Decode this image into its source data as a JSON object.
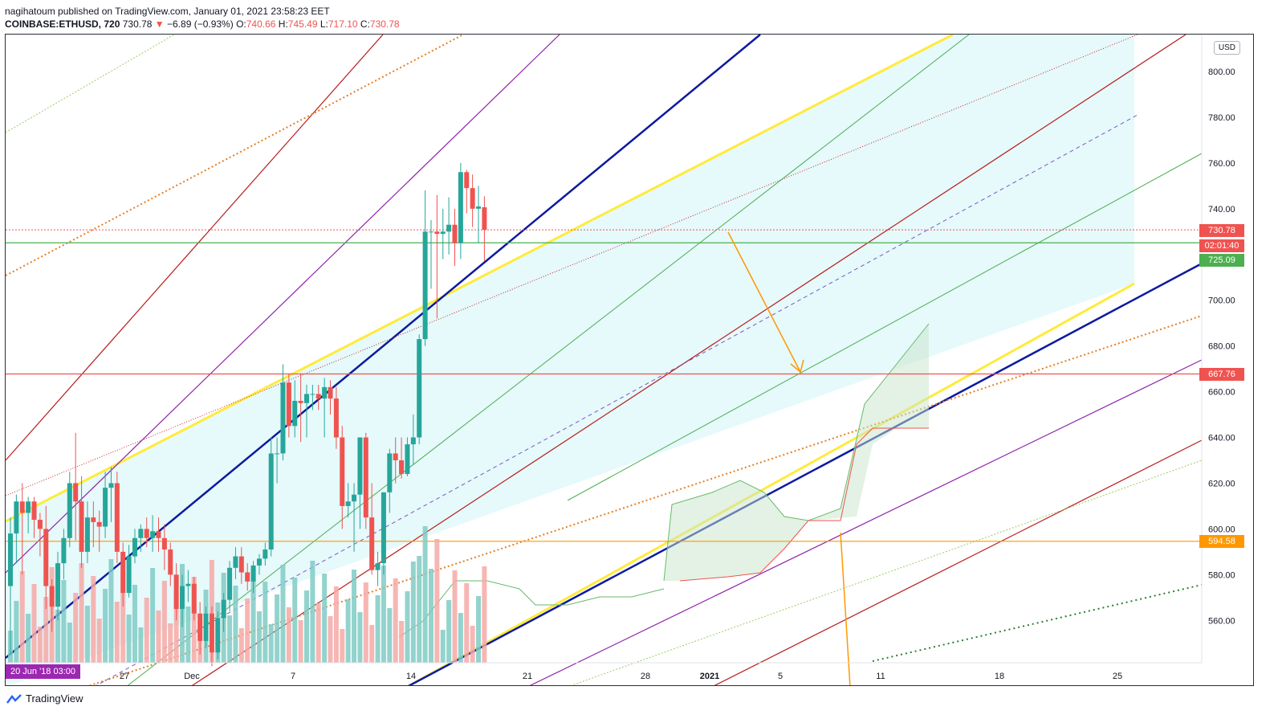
{
  "header": {
    "line1": "nagihatoum published on TradingView.com, January 01, 2021 23:58:23 EET",
    "symbol": "COINBASE:ETHUSD, 720",
    "last": "730.78",
    "arrow": "▼",
    "change": "−6.89 (−0.93%)",
    "o_label": "O:",
    "o_value": "740.66",
    "h_label": "H:",
    "h_value": "745.49",
    "l_label": "L:",
    "l_value": "717.10",
    "c_label": "C:",
    "c_value": "730.78"
  },
  "footer": {
    "brand": "TradingView"
  },
  "chart": {
    "currency": "USD",
    "date_badge": "20 Jun '18   03:00",
    "price_tags": [
      {
        "label": "730.78",
        "color": "#ef5350"
      },
      {
        "label": "02:01:40",
        "color": "#ef5350"
      },
      {
        "label": "725.09",
        "color": "#4caf50"
      },
      {
        "label": "667.76",
        "color": "#ef5350"
      },
      {
        "label": "594.58",
        "color": "#ff9800"
      }
    ]
  },
  "chart_data": {
    "type": "candlestick",
    "title": "COINBASE:ETHUSD, 720",
    "x_ticks": [
      "27",
      "Dec",
      "7",
      "14",
      "21",
      "28",
      "2021",
      "5",
      "11",
      "18",
      "25"
    ],
    "y_ticks": [
      560,
      580,
      600,
      620,
      640,
      660,
      680,
      700,
      720,
      740,
      760,
      780,
      800
    ],
    "y_tick_labels": [
      "560.00",
      "580.00",
      "600.00",
      "620.00",
      "640.00",
      "660.00",
      "680.00",
      "700.00",
      "",
      "740.00",
      "760.00",
      "780.00",
      "800.00"
    ],
    "ylim": [
      540,
      812
    ],
    "grid": false,
    "horizontal_levels": [
      {
        "value": 730.78,
        "color": "#ef5350",
        "style": "dotted"
      },
      {
        "value": 725.09,
        "color": "#4caf50",
        "style": "solid"
      },
      {
        "value": 667.76,
        "color": "#ef5350",
        "style": "solid"
      },
      {
        "value": 594.58,
        "color": "#ff9800",
        "style": "solid"
      }
    ],
    "candles": [
      {
        "o": 575,
        "h": 605,
        "l": 545,
        "c": 598
      },
      {
        "o": 598,
        "h": 615,
        "l": 585,
        "c": 612
      },
      {
        "o": 612,
        "h": 620,
        "l": 580,
        "c": 607
      },
      {
        "o": 607,
        "h": 614,
        "l": 598,
        "c": 612
      },
      {
        "o": 612,
        "h": 614,
        "l": 596,
        "c": 604
      },
      {
        "o": 604,
        "h": 607,
        "l": 588,
        "c": 600
      },
      {
        "o": 600,
        "h": 610,
        "l": 565,
        "c": 575
      },
      {
        "o": 575,
        "h": 578,
        "l": 555,
        "c": 566
      },
      {
        "o": 566,
        "h": 590,
        "l": 560,
        "c": 585
      },
      {
        "o": 585,
        "h": 600,
        "l": 578,
        "c": 596
      },
      {
        "o": 596,
        "h": 625,
        "l": 592,
        "c": 620
      },
      {
        "o": 620,
        "h": 642,
        "l": 595,
        "c": 612
      },
      {
        "o": 612,
        "h": 623,
        "l": 583,
        "c": 590
      },
      {
        "o": 590,
        "h": 612,
        "l": 585,
        "c": 605
      },
      {
        "o": 605,
        "h": 612,
        "l": 592,
        "c": 603
      },
      {
        "o": 603,
        "h": 608,
        "l": 590,
        "c": 601
      },
      {
        "o": 601,
        "h": 625,
        "l": 596,
        "c": 618
      },
      {
        "o": 618,
        "h": 627,
        "l": 603,
        "c": 620
      },
      {
        "o": 620,
        "h": 625,
        "l": 585,
        "c": 590
      },
      {
        "o": 590,
        "h": 594,
        "l": 566,
        "c": 572
      },
      {
        "o": 572,
        "h": 593,
        "l": 570,
        "c": 588
      },
      {
        "o": 588,
        "h": 600,
        "l": 585,
        "c": 596
      },
      {
        "o": 596,
        "h": 602,
        "l": 590,
        "c": 600
      },
      {
        "o": 600,
        "h": 605,
        "l": 592,
        "c": 596
      },
      {
        "o": 596,
        "h": 606,
        "l": 590,
        "c": 599
      },
      {
        "o": 599,
        "h": 605,
        "l": 590,
        "c": 596
      },
      {
        "o": 596,
        "h": 602,
        "l": 582,
        "c": 591
      },
      {
        "o": 591,
        "h": 594,
        "l": 575,
        "c": 580
      },
      {
        "o": 580,
        "h": 585,
        "l": 560,
        "c": 565
      },
      {
        "o": 565,
        "h": 580,
        "l": 557,
        "c": 575
      },
      {
        "o": 575,
        "h": 582,
        "l": 568,
        "c": 576
      },
      {
        "o": 576,
        "h": 579,
        "l": 560,
        "c": 563
      },
      {
        "o": 563,
        "h": 568,
        "l": 545,
        "c": 551
      },
      {
        "o": 551,
        "h": 566,
        "l": 548,
        "c": 563
      },
      {
        "o": 563,
        "h": 566,
        "l": 540,
        "c": 546
      },
      {
        "o": 546,
        "h": 564,
        "l": 543,
        "c": 561
      },
      {
        "o": 561,
        "h": 572,
        "l": 555,
        "c": 569
      },
      {
        "o": 569,
        "h": 586,
        "l": 564,
        "c": 583
      },
      {
        "o": 583,
        "h": 592,
        "l": 578,
        "c": 588
      },
      {
        "o": 588,
        "h": 592,
        "l": 576,
        "c": 581
      },
      {
        "o": 581,
        "h": 585,
        "l": 573,
        "c": 577
      },
      {
        "o": 577,
        "h": 586,
        "l": 572,
        "c": 584
      },
      {
        "o": 584,
        "h": 589,
        "l": 580,
        "c": 587
      },
      {
        "o": 587,
        "h": 594,
        "l": 584,
        "c": 591
      },
      {
        "o": 591,
        "h": 640,
        "l": 588,
        "c": 633
      },
      {
        "o": 633,
        "h": 640,
        "l": 620,
        "c": 633
      },
      {
        "o": 633,
        "h": 672,
        "l": 630,
        "c": 664
      },
      {
        "o": 664,
        "h": 668,
        "l": 640,
        "c": 645
      },
      {
        "o": 645,
        "h": 665,
        "l": 640,
        "c": 656
      },
      {
        "o": 656,
        "h": 668,
        "l": 638,
        "c": 655
      },
      {
        "o": 655,
        "h": 663,
        "l": 640,
        "c": 659
      },
      {
        "o": 659,
        "h": 663,
        "l": 652,
        "c": 659
      },
      {
        "o": 659,
        "h": 663,
        "l": 652,
        "c": 657
      },
      {
        "o": 657,
        "h": 666,
        "l": 640,
        "c": 662
      },
      {
        "o": 662,
        "h": 665,
        "l": 650,
        "c": 657
      },
      {
        "o": 657,
        "h": 662,
        "l": 635,
        "c": 640
      },
      {
        "o": 640,
        "h": 645,
        "l": 600,
        "c": 610
      },
      {
        "o": 610,
        "h": 620,
        "l": 605,
        "c": 612
      },
      {
        "o": 612,
        "h": 620,
        "l": 590,
        "c": 615
      },
      {
        "o": 615,
        "h": 640,
        "l": 600,
        "c": 640
      },
      {
        "o": 640,
        "h": 642,
        "l": 600,
        "c": 605
      },
      {
        "o": 605,
        "h": 620,
        "l": 580,
        "c": 582
      },
      {
        "o": 582,
        "h": 590,
        "l": 575,
        "c": 585
      },
      {
        "o": 585,
        "h": 615,
        "l": 580,
        "c": 616
      },
      {
        "o": 616,
        "h": 635,
        "l": 607,
        "c": 633
      },
      {
        "o": 633,
        "h": 640,
        "l": 620,
        "c": 630
      },
      {
        "o": 630,
        "h": 640,
        "l": 622,
        "c": 624
      },
      {
        "o": 624,
        "h": 640,
        "l": 623,
        "c": 637
      },
      {
        "o": 637,
        "h": 650,
        "l": 628,
        "c": 640
      },
      {
        "o": 640,
        "h": 685,
        "l": 637,
        "c": 683
      },
      {
        "o": 683,
        "h": 748,
        "l": 680,
        "c": 730
      },
      {
        "o": 730,
        "h": 735,
        "l": 705,
        "c": 730
      },
      {
        "o": 730,
        "h": 746,
        "l": 692,
        "c": 729
      },
      {
        "o": 729,
        "h": 740,
        "l": 718,
        "c": 730
      },
      {
        "o": 730,
        "h": 745,
        "l": 720,
        "c": 733
      },
      {
        "o": 733,
        "h": 740,
        "l": 715,
        "c": 725
      },
      {
        "o": 725,
        "h": 760,
        "l": 718,
        "c": 756
      },
      {
        "o": 756,
        "h": 757,
        "l": 738,
        "c": 749
      },
      {
        "o": 749,
        "h": 755,
        "l": 732,
        "c": 740
      },
      {
        "o": 740,
        "h": 750,
        "l": 725,
        "c": 741
      },
      {
        "o": 740.66,
        "h": 745.49,
        "l": 717.1,
        "c": 730.78
      }
    ],
    "ichimoku_cloud_note": "green/red shaded region",
    "annotations": [
      "orange arrow from 730 down to 667.76"
    ]
  }
}
